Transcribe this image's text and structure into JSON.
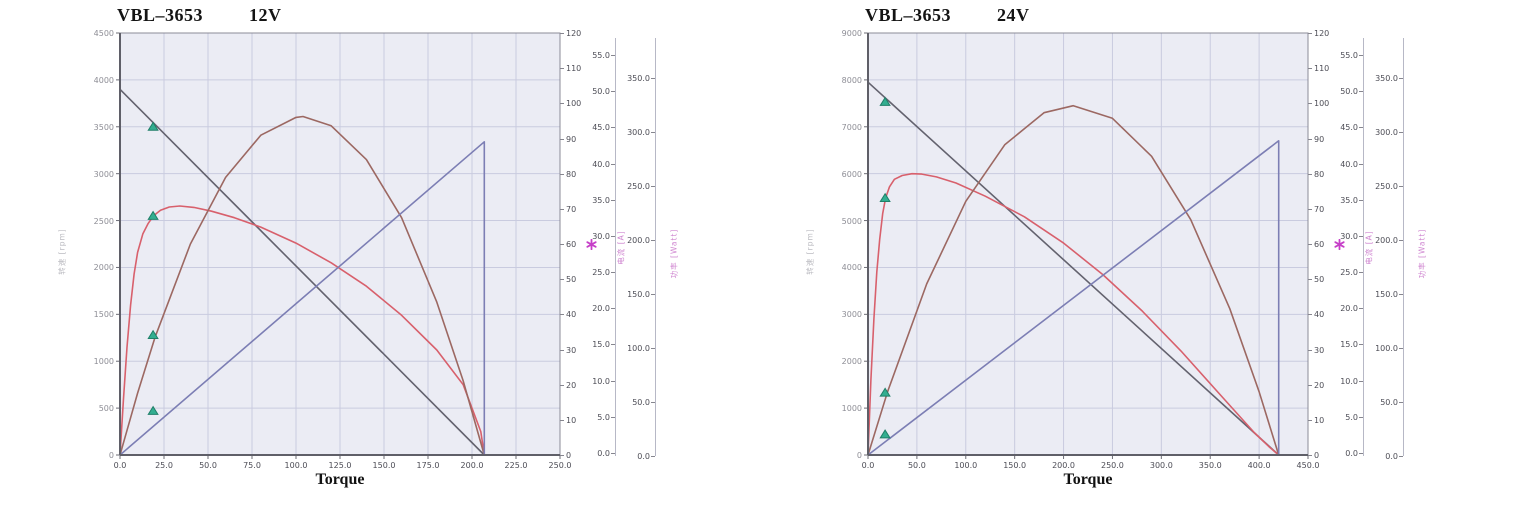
{
  "theme": {
    "plot_bg": "#ebecf4",
    "grid": "#c9cbdf",
    "axis_dark": "#5f5f68",
    "axis_light": "#8b8b97",
    "speed_line": "#63626e",
    "efficiency_curve": "#d8606c",
    "power_curve": "#9c6862",
    "current_line": "#7c7eb4",
    "marker_green": "#33ae90",
    "marker_green_edge": "#1f7f68",
    "magenta": "#c63fc8",
    "pink_label": "#cf85d0"
  },
  "chart_data": [
    {
      "type": "line",
      "title": {
        "model": "VBL–3653",
        "voltage": "12V"
      },
      "axes": {
        "speed": {
          "label": "转速 [rpm]",
          "min": 0,
          "max": 4500,
          "ticks": [
            "0",
            "500",
            "1000",
            "1500",
            "2000",
            "2500",
            "3000",
            "3500",
            "4000",
            "4500"
          ]
        },
        "torque": {
          "label": "Torque",
          "min": 0,
          "max": 250,
          "ticks": [
            "0.0",
            "25.0",
            "50.0",
            "75.0",
            "100.0",
            "125.0",
            "150.0",
            "175.0",
            "200.0",
            "225.0",
            "250.0"
          ]
        },
        "efficiency": {
          "min": 0,
          "max": 120,
          "ticks": [
            "0",
            "10",
            "20",
            "30",
            "40",
            "50",
            "60",
            "70",
            "80",
            "90",
            "100",
            "110",
            "120"
          ]
        },
        "current": {
          "label": "电流 [A]",
          "min": 0,
          "max": 55,
          "ticks": [
            "0.0",
            "5.0",
            "10.0",
            "15.0",
            "20.0",
            "25.0",
            "30.0",
            "35.0",
            "40.0",
            "45.0",
            "50.0",
            "55.0"
          ]
        },
        "power": {
          "label": "功率 [Watt]",
          "min": 0,
          "max": 350,
          "ticks": [
            "0.0",
            "50.0",
            "100.0",
            "150.0",
            "200.0",
            "250.0",
            "300.0",
            "350.0"
          ]
        }
      },
      "no_load_speed_rpm": 3900,
      "stall_torque": 207,
      "efficiency_peak_pct": 71,
      "power_peak_watt": 280,
      "series": [
        {
          "name": "speed-line",
          "color": "#63626e",
          "points": [
            [
              0,
              3900
            ],
            [
              207,
              0
            ]
          ]
        },
        {
          "name": "efficiency-curve",
          "color": "#d8606c",
          "points": [
            [
              0,
              0
            ],
            [
              2,
              600
            ],
            [
              4,
              1150
            ],
            [
              6,
              1600
            ],
            [
              8,
              1930
            ],
            [
              10,
              2160
            ],
            [
              13,
              2360
            ],
            [
              16,
              2470
            ],
            [
              19,
              2550
            ],
            [
              23,
              2610
            ],
            [
              28,
              2645
            ],
            [
              34,
              2655
            ],
            [
              42,
              2640
            ],
            [
              52,
              2600
            ],
            [
              65,
              2530
            ],
            [
              80,
              2430
            ],
            [
              100,
              2260
            ],
            [
              120,
              2050
            ],
            [
              140,
              1800
            ],
            [
              160,
              1490
            ],
            [
              180,
              1120
            ],
            [
              195,
              750
            ],
            [
              205,
              250
            ],
            [
              207,
              0
            ]
          ]
        },
        {
          "name": "power-curve",
          "color": "#9c6862",
          "points": [
            [
              0,
              0
            ],
            [
              10,
              660
            ],
            [
              20,
              1260
            ],
            [
              40,
              2250
            ],
            [
              60,
              2960
            ],
            [
              80,
              3410
            ],
            [
              100,
              3600
            ],
            [
              104,
              3610
            ],
            [
              120,
              3510
            ],
            [
              140,
              3150
            ],
            [
              160,
              2530
            ],
            [
              180,
              1630
            ],
            [
              195,
              790
            ],
            [
              207,
              0
            ]
          ]
        },
        {
          "name": "current-line",
          "color": "#7c7eb4",
          "points": [
            [
              0,
              0
            ],
            [
              207,
              3340
            ],
            [
              207,
              0
            ]
          ]
        }
      ],
      "rated_point_markers": {
        "color": "#33ae90",
        "torque": 19,
        "points": [
          [
            18.8,
            3500
          ],
          [
            18.8,
            2550
          ],
          [
            18.8,
            1280
          ],
          [
            18.8,
            470
          ]
        ]
      },
      "asterisk_marker": {
        "color": "#c63fc8",
        "axis": "current",
        "value": 28.5
      }
    },
    {
      "type": "line",
      "title": {
        "model": "VBL–3653",
        "voltage": "24V"
      },
      "axes": {
        "speed": {
          "label": "转速 [rpm]",
          "min": 0,
          "max": 9000,
          "ticks": [
            "0",
            "1000",
            "2000",
            "3000",
            "4000",
            "5000",
            "6000",
            "7000",
            "8000",
            "9000"
          ]
        },
        "torque": {
          "label": "Torque",
          "min": 0,
          "max": 450,
          "ticks": [
            "0.0",
            "50.0",
            "100.0",
            "150.0",
            "200.0",
            "250.0",
            "300.0",
            "350.0",
            "400.0",
            "450.0"
          ]
        },
        "efficiency": {
          "min": 0,
          "max": 120,
          "ticks": [
            "0",
            "10",
            "20",
            "30",
            "40",
            "50",
            "60",
            "70",
            "80",
            "90",
            "100",
            "110",
            "120"
          ]
        },
        "current": {
          "label": "电流 [A]",
          "min": 0,
          "max": 55,
          "ticks": [
            "0.0",
            "5.0",
            "10.0",
            "15.0",
            "20.0",
            "25.0",
            "30.0",
            "35.0",
            "40.0",
            "45.0",
            "50.0",
            "55.0"
          ]
        },
        "power": {
          "label": "功率 [Watt]",
          "min": 0,
          "max": 350,
          "ticks": [
            "0.0",
            "50.0",
            "100.0",
            "150.0",
            "200.0",
            "250.0",
            "300.0",
            "350.0"
          ]
        }
      },
      "no_load_speed_rpm": 7950,
      "stall_torque": 420,
      "efficiency_peak_pct": 80,
      "power_peak_watt": 290,
      "series": [
        {
          "name": "speed-line",
          "color": "#63626e",
          "points": [
            [
              0,
              7950
            ],
            [
              420,
              0
            ]
          ]
        },
        {
          "name": "efficiency-curve",
          "color": "#d8606c",
          "points": [
            [
              0,
              0
            ],
            [
              3,
              1600
            ],
            [
              6,
              2900
            ],
            [
              9,
              3900
            ],
            [
              12,
              4600
            ],
            [
              15,
              5150
            ],
            [
              18,
              5480
            ],
            [
              22,
              5720
            ],
            [
              27,
              5880
            ],
            [
              35,
              5960
            ],
            [
              45,
              6000
            ],
            [
              55,
              5990
            ],
            [
              70,
              5930
            ],
            [
              90,
              5800
            ],
            [
              120,
              5520
            ],
            [
              160,
              5080
            ],
            [
              200,
              4520
            ],
            [
              240,
              3850
            ],
            [
              280,
              3080
            ],
            [
              320,
              2220
            ],
            [
              360,
              1290
            ],
            [
              395,
              480
            ],
            [
              410,
              180
            ],
            [
              420,
              0
            ]
          ]
        },
        {
          "name": "power-curve",
          "color": "#9c6862",
          "points": [
            [
              0,
              0
            ],
            [
              20,
              1350
            ],
            [
              60,
              3650
            ],
            [
              100,
              5410
            ],
            [
              140,
              6620
            ],
            [
              180,
              7300
            ],
            [
              210,
              7450
            ],
            [
              250,
              7180
            ],
            [
              290,
              6370
            ],
            [
              330,
              5020
            ],
            [
              370,
              3120
            ],
            [
              400,
              1350
            ],
            [
              420,
              0
            ]
          ]
        },
        {
          "name": "current-line",
          "color": "#7c7eb4",
          "points": [
            [
              0,
              0
            ],
            [
              420,
              6700
            ],
            [
              420,
              0
            ]
          ]
        }
      ],
      "rated_point_markers": {
        "color": "#33ae90",
        "torque": 17,
        "points": [
          [
            17.5,
            7530
          ],
          [
            17.5,
            5480
          ],
          [
            17.5,
            1330
          ],
          [
            17.5,
            440
          ]
        ]
      },
      "asterisk_marker": {
        "color": "#c63fc8",
        "axis": "current",
        "value": 28.5
      }
    }
  ]
}
